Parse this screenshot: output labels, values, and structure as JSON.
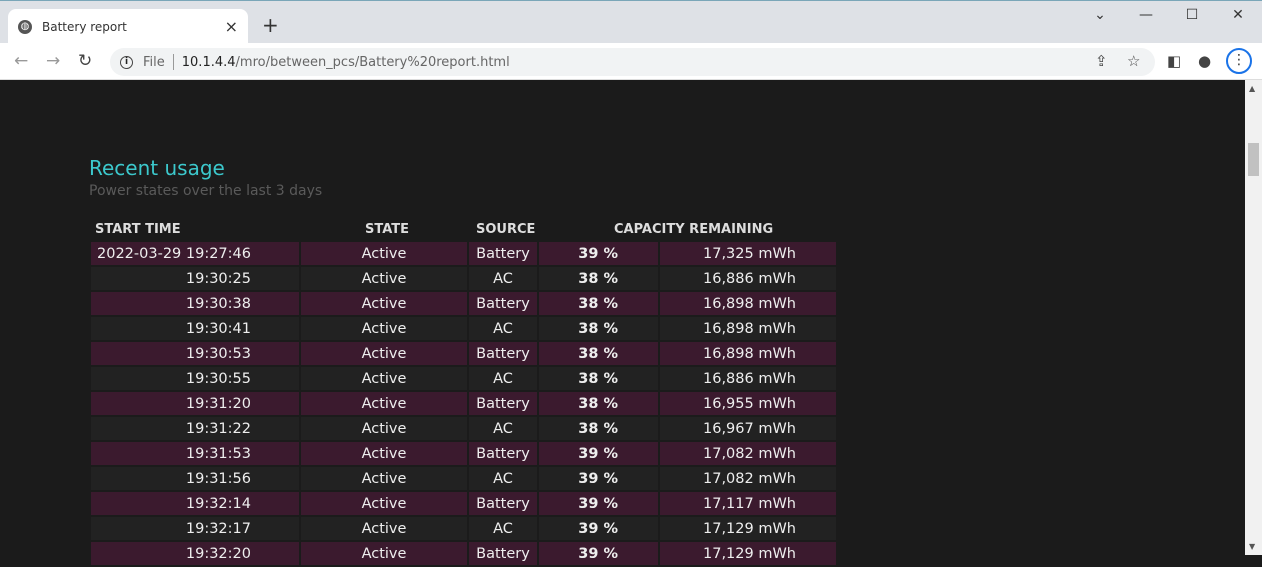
{
  "browser": {
    "tab_title": "Battery report",
    "url_scheme": "File",
    "url_host": "10.1.4.4",
    "url_path": "/mro/between_pcs/Battery%20report.html"
  },
  "section": {
    "title": "Recent usage",
    "subtitle": "Power states over the last 3 days"
  },
  "table": {
    "headers": [
      "START TIME",
      "STATE",
      "SOURCE",
      "CAPACITY REMAINING"
    ],
    "date": "2022-03-29",
    "rows": [
      {
        "time": "19:27:46",
        "state": "Active",
        "source": "Battery",
        "percent": "39 %",
        "capacity": "17,325 mWh"
      },
      {
        "time": "19:30:25",
        "state": "Active",
        "source": "AC",
        "percent": "38 %",
        "capacity": "16,886 mWh"
      },
      {
        "time": "19:30:38",
        "state": "Active",
        "source": "Battery",
        "percent": "38 %",
        "capacity": "16,898 mWh"
      },
      {
        "time": "19:30:41",
        "state": "Active",
        "source": "AC",
        "percent": "38 %",
        "capacity": "16,898 mWh"
      },
      {
        "time": "19:30:53",
        "state": "Active",
        "source": "Battery",
        "percent": "38 %",
        "capacity": "16,898 mWh"
      },
      {
        "time": "19:30:55",
        "state": "Active",
        "source": "AC",
        "percent": "38 %",
        "capacity": "16,886 mWh"
      },
      {
        "time": "19:31:20",
        "state": "Active",
        "source": "Battery",
        "percent": "38 %",
        "capacity": "16,955 mWh"
      },
      {
        "time": "19:31:22",
        "state": "Active",
        "source": "AC",
        "percent": "38 %",
        "capacity": "16,967 mWh"
      },
      {
        "time": "19:31:53",
        "state": "Active",
        "source": "Battery",
        "percent": "39 %",
        "capacity": "17,082 mWh"
      },
      {
        "time": "19:31:56",
        "state": "Active",
        "source": "AC",
        "percent": "39 %",
        "capacity": "17,082 mWh"
      },
      {
        "time": "19:32:14",
        "state": "Active",
        "source": "Battery",
        "percent": "39 %",
        "capacity": "17,117 mWh"
      },
      {
        "time": "19:32:17",
        "state": "Active",
        "source": "AC",
        "percent": "39 %",
        "capacity": "17,129 mWh"
      },
      {
        "time": "19:32:20",
        "state": "Active",
        "source": "Battery",
        "percent": "39 %",
        "capacity": "17,129 mWh"
      }
    ]
  }
}
